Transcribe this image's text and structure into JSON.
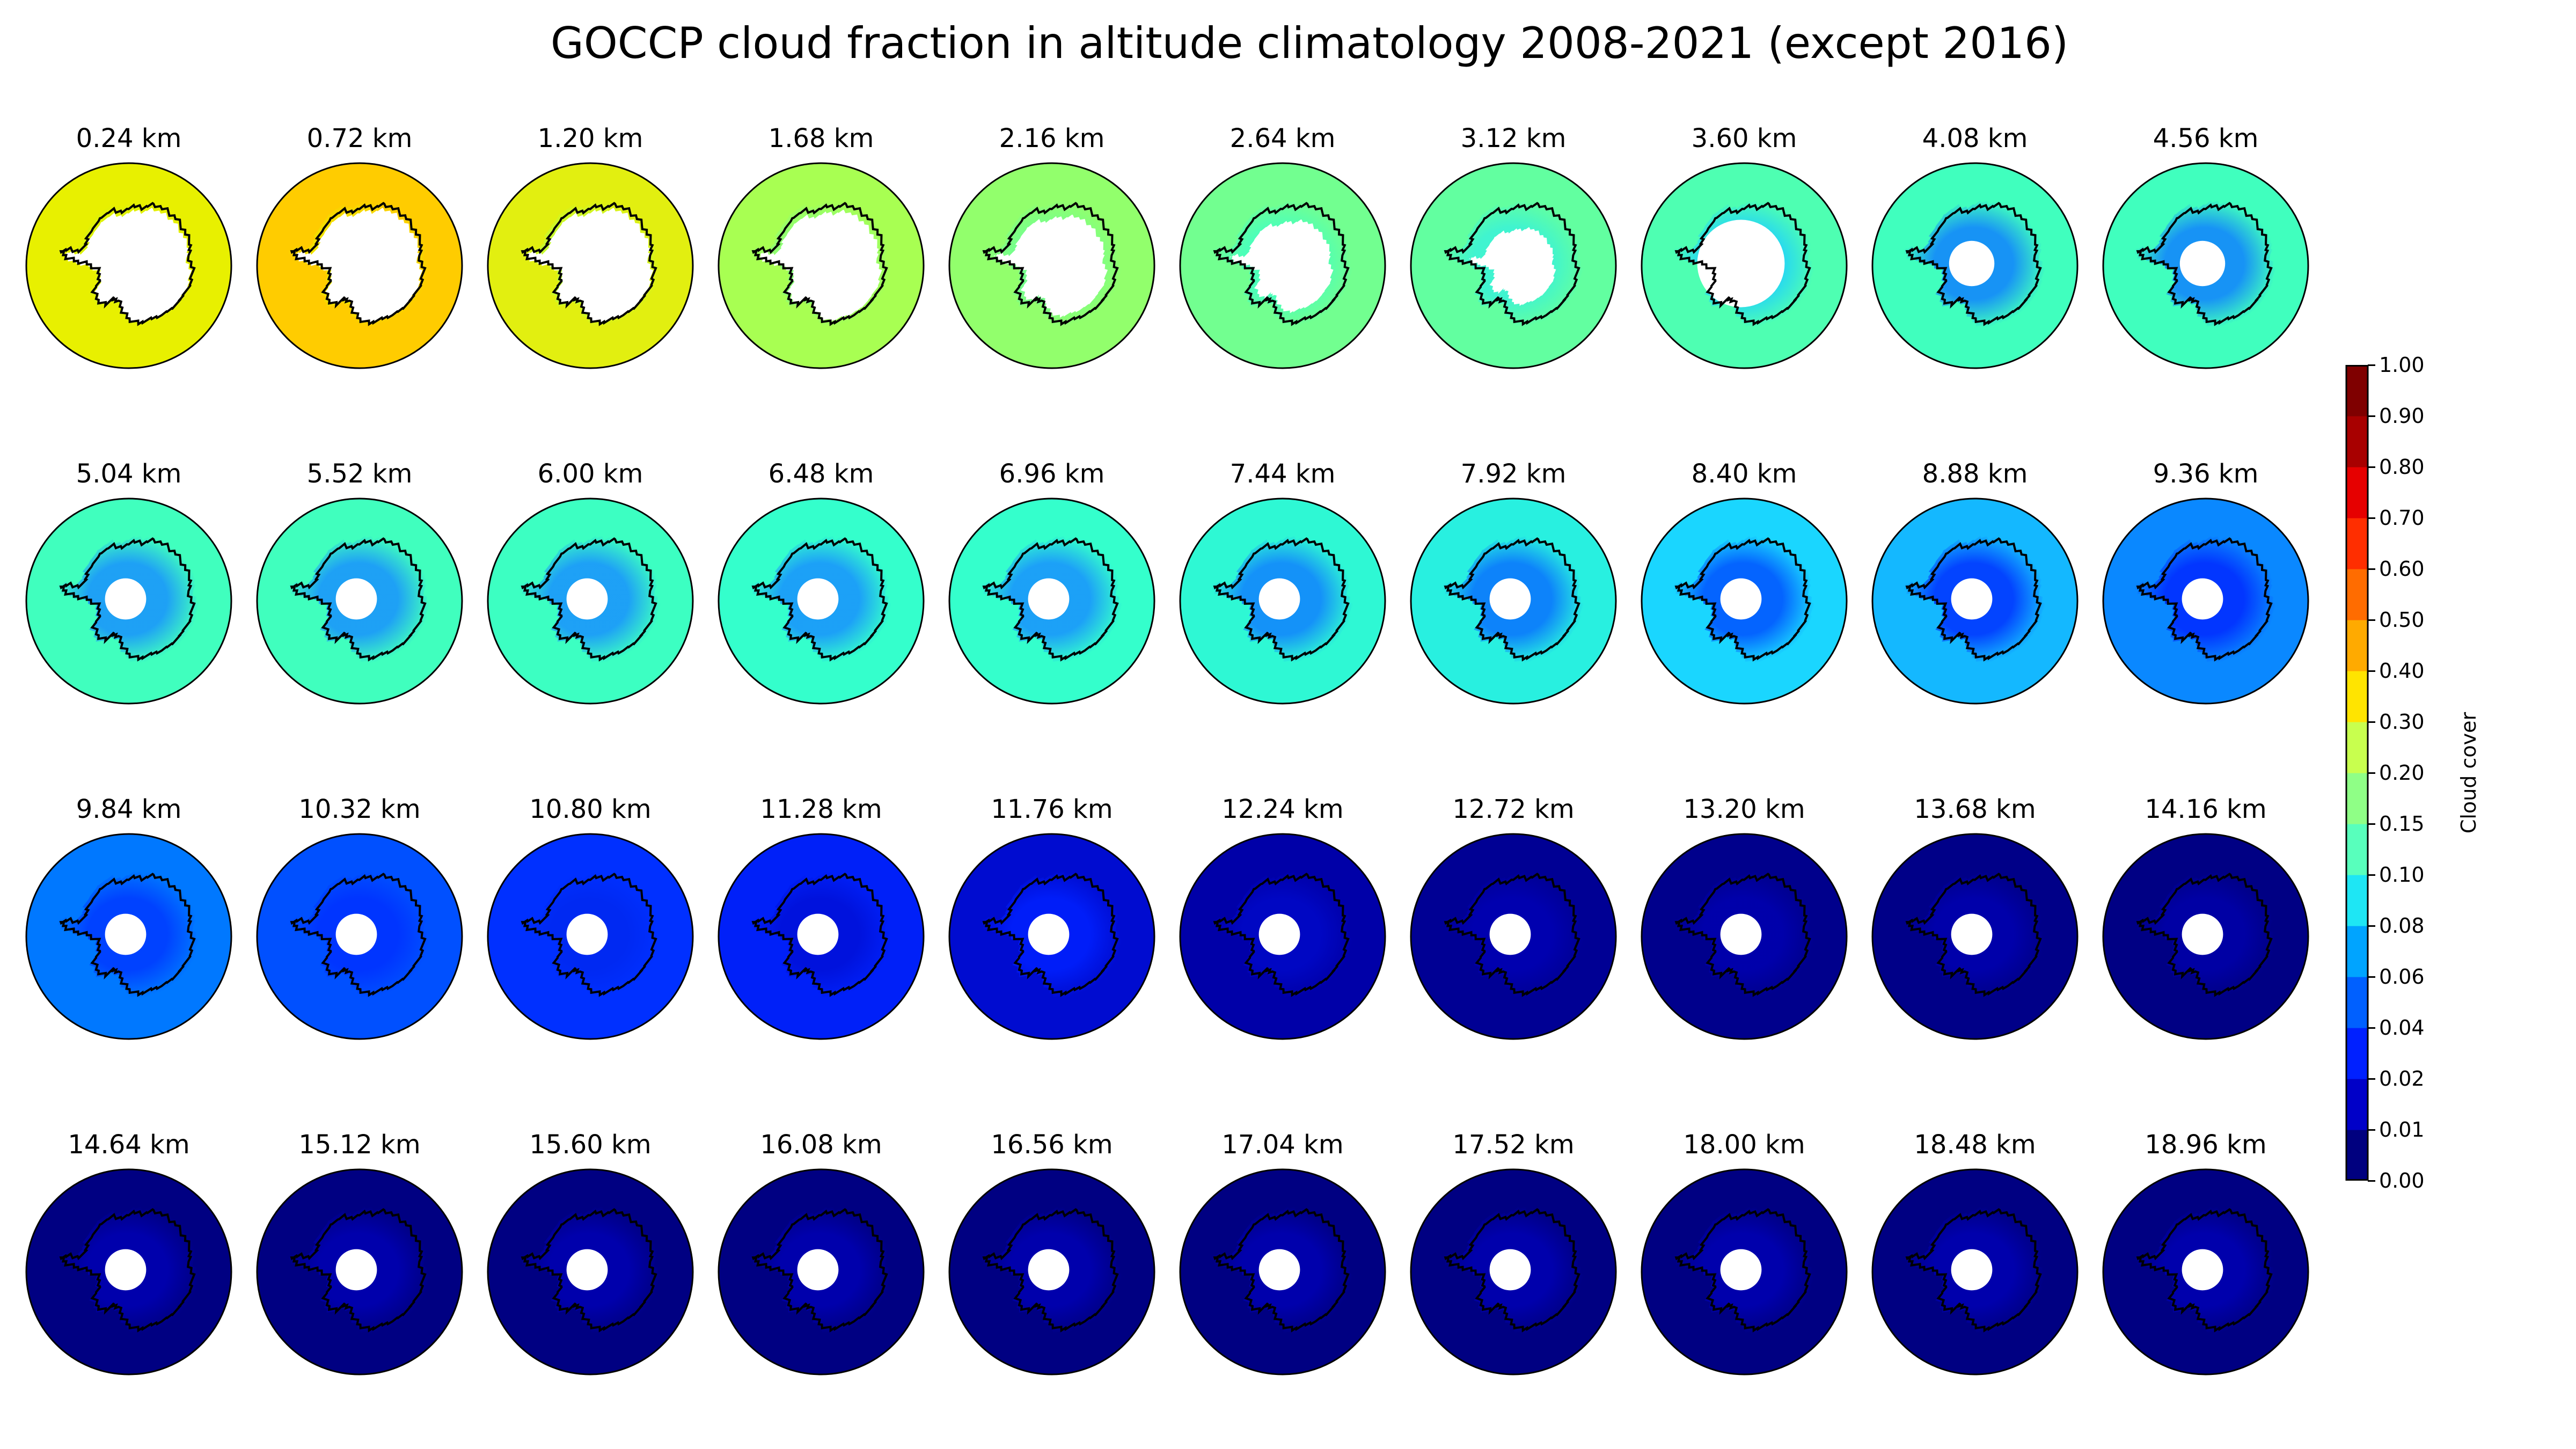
{
  "title": "GOCCP cloud fraction in altitude climatology 2008-2021 (except 2016)",
  "colorbar": {
    "label": "Cloud cover",
    "ticks": [
      "0.00",
      "0.01",
      "0.02",
      "0.04",
      "0.06",
      "0.08",
      "0.10",
      "0.15",
      "0.20",
      "0.30",
      "0.40",
      "0.50",
      "0.60",
      "0.70",
      "0.80",
      "0.90",
      "1.00"
    ],
    "colors": [
      "#00007f",
      "#0000c8",
      "#0020ff",
      "#0060ff",
      "#00a4ff",
      "#1ee6f4",
      "#58ffbc",
      "#8fff86",
      "#c8ff4e",
      "#ffe400",
      "#ffaa00",
      "#ff6c00",
      "#ff2e00",
      "#e60000",
      "#a80000",
      "#7f0000"
    ]
  },
  "panels": [
    {
      "label": "0.24 km",
      "ocean": "#e8f000",
      "inner": "#d4f212",
      "land": "#ffffff",
      "hole": 0.62
    },
    {
      "label": "0.72 km",
      "ocean": "#ffcc00",
      "inner": "#e8ee00",
      "land": "#ffffff",
      "hole": 0.62
    },
    {
      "label": "1.20 km",
      "ocean": "#e2ef10",
      "inner": "#b8ff40",
      "land": "#ffffff",
      "hole": 0.62
    },
    {
      "label": "1.68 km",
      "ocean": "#a8ff52",
      "inner": "#86ff80",
      "land": "#ffffff",
      "hole": 0.6
    },
    {
      "label": "2.16 km",
      "ocean": "#92ff6c",
      "inner": "#72ff92",
      "land": "#ffffff",
      "hole": 0.55
    },
    {
      "label": "2.64 km",
      "ocean": "#72ff90",
      "inner": "#46ffc0",
      "land": "#ffffff",
      "hole": 0.5
    },
    {
      "label": "3.12 km",
      "ocean": "#62ffa0",
      "inner": "#3af2d8",
      "land": "#ffffff",
      "hole": 0.42
    },
    {
      "label": "3.60 km",
      "ocean": "#4effb2",
      "inner": "#1ed0ff",
      "land": "#ffffff",
      "hole": 0.32
    },
    {
      "label": "4.08 km",
      "ocean": "#40ffbe",
      "inner": "#1080ff",
      "land": "#ffffff",
      "hole": 0.22
    },
    {
      "label": "4.56 km",
      "ocean": "#40ffbe",
      "inner": "#1080ff",
      "land": "#ffffff",
      "hole": 0.22
    },
    {
      "label": "5.04 km",
      "ocean": "#40ffbe",
      "inner": "#1890ff",
      "land": "#ffffff",
      "hole": 0.2
    },
    {
      "label": "5.52 km",
      "ocean": "#40ffbe",
      "inner": "#1890ff",
      "land": "#ffffff",
      "hole": 0.2
    },
    {
      "label": "6.00 km",
      "ocean": "#3cffc2",
      "inner": "#1890ff",
      "land": "#ffffff",
      "hole": 0.2
    },
    {
      "label": "6.48 km",
      "ocean": "#34ffcc",
      "inner": "#1890ff",
      "land": "#ffffff",
      "hole": 0.2
    },
    {
      "label": "6.96 km",
      "ocean": "#34ffcc",
      "inner": "#1890ff",
      "land": "#ffffff",
      "hole": 0.2
    },
    {
      "label": "7.44 km",
      "ocean": "#2ef8d4",
      "inner": "#1080ff",
      "land": "#ffffff",
      "hole": 0.2
    },
    {
      "label": "7.92 km",
      "ocean": "#28f0e0",
      "inner": "#0870ff",
      "land": "#ffffff",
      "hole": 0.2
    },
    {
      "label": "8.40 km",
      "ocean": "#1ad6ff",
      "inner": "#0050ff",
      "land": "#ffffff",
      "hole": 0.2
    },
    {
      "label": "8.88 km",
      "ocean": "#14b8ff",
      "inner": "#0030ff",
      "land": "#ffffff",
      "hole": 0.2
    },
    {
      "label": "9.36 km",
      "ocean": "#0a88ff",
      "inner": "#0028ff",
      "land": "#ffffff",
      "hole": 0.2
    },
    {
      "label": "9.84 km",
      "ocean": "#0078ff",
      "inner": "#0038ff",
      "land": "#ffffff",
      "hole": 0.2
    },
    {
      "label": "10.32 km",
      "ocean": "#0050ff",
      "inner": "#0030ff",
      "land": "#ffffff",
      "hole": 0.2
    },
    {
      "label": "10.80 km",
      "ocean": "#0030ff",
      "inner": "#0028f0",
      "land": "#ffffff",
      "hole": 0.2
    },
    {
      "label": "11.28 km",
      "ocean": "#0020f8",
      "inner": "#0010d8",
      "land": "#ffffff",
      "hole": 0.2
    },
    {
      "label": "11.76 km",
      "ocean": "#000cd0",
      "inner": "#0020ff",
      "land": "#ffffff",
      "hole": 0.2
    },
    {
      "label": "12.24 km",
      "ocean": "#0000a8",
      "inner": "#0008c8",
      "land": "#ffffff",
      "hole": 0.2
    },
    {
      "label": "12.72 km",
      "ocean": "#000094",
      "inner": "#0000b4",
      "land": "#ffffff",
      "hole": 0.2
    },
    {
      "label": "13.20 km",
      "ocean": "#00008c",
      "inner": "#0000b0",
      "land": "#ffffff",
      "hole": 0.2
    },
    {
      "label": "13.68 km",
      "ocean": "#000088",
      "inner": "#0000b0",
      "land": "#ffffff",
      "hole": 0.2
    },
    {
      "label": "14.16 km",
      "ocean": "#000084",
      "inner": "#0000aa",
      "land": "#ffffff",
      "hole": 0.2
    },
    {
      "label": "14.64 km",
      "ocean": "#000082",
      "inner": "#0000b4",
      "land": "#ffffff",
      "hole": 0.2
    },
    {
      "label": "15.12 km",
      "ocean": "#000082",
      "inner": "#0000b4",
      "land": "#ffffff",
      "hole": 0.2
    },
    {
      "label": "15.60 km",
      "ocean": "#000082",
      "inner": "#0000b4",
      "land": "#ffffff",
      "hole": 0.2
    },
    {
      "label": "16.08 km",
      "ocean": "#000082",
      "inner": "#0000b4",
      "land": "#ffffff",
      "hole": 0.2
    },
    {
      "label": "16.56 km",
      "ocean": "#000082",
      "inner": "#0000b4",
      "land": "#ffffff",
      "hole": 0.2
    },
    {
      "label": "17.04 km",
      "ocean": "#000082",
      "inner": "#0000b4",
      "land": "#ffffff",
      "hole": 0.2
    },
    {
      "label": "17.52 km",
      "ocean": "#000082",
      "inner": "#0000b4",
      "land": "#ffffff",
      "hole": 0.2
    },
    {
      "label": "18.00 km",
      "ocean": "#000082",
      "inner": "#0000b4",
      "land": "#ffffff",
      "hole": 0.2
    },
    {
      "label": "18.48 km",
      "ocean": "#000082",
      "inner": "#0000b4",
      "land": "#ffffff",
      "hole": 0.2
    },
    {
      "label": "18.96 km",
      "ocean": "#000082",
      "inner": "#0000b4",
      "land": "#ffffff",
      "hole": 0.2
    }
  ]
}
